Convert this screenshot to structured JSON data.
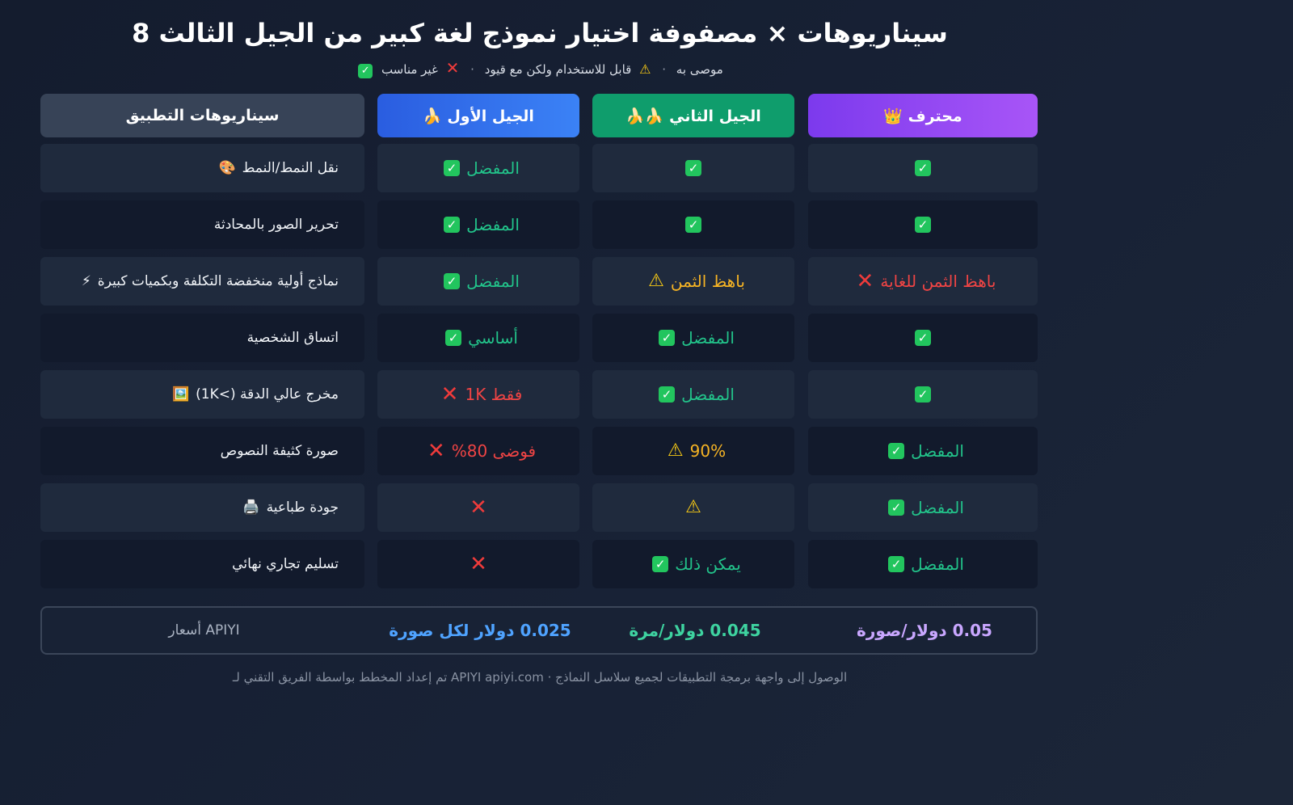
{
  "title": "سيناريوهات × مصفوفة اختيار نموذج لغة كبير من الجيل الثالث 8",
  "legend": {
    "recommended": "موصى به",
    "usable": "قابل للاستخدام ولكن مع قيود",
    "unsuitable": "غير مناسب",
    "separator": "·"
  },
  "headers": {
    "scenarios": "سيناريوهات التطبيق",
    "gen1": "الجيل الأول 🍌",
    "gen2": "الجيل الثاني 🍌🍌",
    "pro": "محترف 👑"
  },
  "rows": [
    {
      "scenario": "نقل النمط/النمط",
      "scenario_icon": "🎨",
      "gen1": {
        "text": "المفضل",
        "icon": "check",
        "tone": "green"
      },
      "gen2": {
        "text": "",
        "icon": "check",
        "tone": "green"
      },
      "pro": {
        "text": "",
        "icon": "check",
        "tone": "green"
      }
    },
    {
      "scenario": "تحرير الصور بالمحادثة",
      "scenario_icon": "",
      "gen1": {
        "text": "المفضل",
        "icon": "check",
        "tone": "green"
      },
      "gen2": {
        "text": "",
        "icon": "check",
        "tone": "green"
      },
      "pro": {
        "text": "",
        "icon": "check",
        "tone": "green"
      }
    },
    {
      "scenario": "نماذج أولية منخفضة التكلفة وبكميات كبيرة",
      "scenario_icon": "⚡",
      "gen1": {
        "text": "المفضل",
        "icon": "check",
        "tone": "green"
      },
      "gen2": {
        "text": "باهظ الثمن",
        "icon": "warn",
        "tone": "amber"
      },
      "pro": {
        "text": "باهظ الثمن للغاية",
        "icon": "cross",
        "tone": "red"
      }
    },
    {
      "scenario": "اتساق الشخصية",
      "scenario_icon": "",
      "gen1": {
        "text": "أساسي",
        "icon": "check",
        "tone": "green"
      },
      "gen2": {
        "text": "المفضل",
        "icon": "check",
        "tone": "green"
      },
      "pro": {
        "text": "",
        "icon": "check",
        "tone": "green"
      }
    },
    {
      "scenario": "مخرج عالي الدقة (>1K)",
      "scenario_icon": "🖼️",
      "gen1": {
        "text": "فقط 1K",
        "icon": "cross",
        "tone": "red"
      },
      "gen2": {
        "text": "المفضل",
        "icon": "check",
        "tone": "green"
      },
      "pro": {
        "text": "",
        "icon": "check",
        "tone": "green"
      }
    },
    {
      "scenario": "صورة كثيفة النصوص",
      "scenario_icon": "",
      "gen1": {
        "text": "فوضى 80%",
        "icon": "cross",
        "tone": "red"
      },
      "gen2": {
        "text": "90%",
        "icon": "warn",
        "tone": "amber"
      },
      "pro": {
        "text": "المفضل",
        "icon": "check",
        "tone": "green"
      }
    },
    {
      "scenario": "جودة طباعية",
      "scenario_icon": "🖨️",
      "gen1": {
        "text": "",
        "icon": "cross",
        "tone": "red"
      },
      "gen2": {
        "text": "",
        "icon": "warn",
        "tone": "amber"
      },
      "pro": {
        "text": "المفضل",
        "icon": "check",
        "tone": "green"
      }
    },
    {
      "scenario": "تسليم تجاري نهائي",
      "scenario_icon": "",
      "gen1": {
        "text": "",
        "icon": "cross",
        "tone": "red"
      },
      "gen2": {
        "text": "يمكن ذلك",
        "icon": "check",
        "tone": "green"
      },
      "pro": {
        "text": "المفضل",
        "icon": "check",
        "tone": "green"
      }
    }
  ],
  "pricing": {
    "label": "APIYI أسعار",
    "gen1": "0.025 دولار لكل صورة",
    "gen2": "0.045 دولار/مرة",
    "pro": "0.05 دولار/صورة"
  },
  "footer": "الوصول إلى واجهة برمجة التطبيقات لجميع سلاسل النماذج · APIYI apiyi.com تم إعداد المخطط بواسطة الفريق التقني لـ",
  "colors": {
    "background": "#182236",
    "gen1_header": "#3b82f6",
    "gen2_header": "#0f9d6c",
    "pro_header": "#a855f7",
    "green": "#22c38a",
    "amber": "#f5b324",
    "red": "#ef4444"
  }
}
